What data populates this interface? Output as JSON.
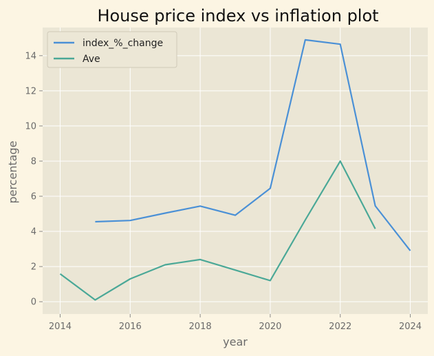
{
  "chart_data": {
    "type": "line",
    "title": "House price index vs inflation plot",
    "xlabel": "year",
    "ylabel": "percentage",
    "xlim": [
      2013.5,
      2024.5
    ],
    "ylim": [
      -0.7,
      15.6
    ],
    "xticks": [
      2014,
      2016,
      2018,
      2020,
      2022,
      2024
    ],
    "yticks": [
      0,
      2,
      4,
      6,
      8,
      10,
      12,
      14
    ],
    "grid": true,
    "legend_position": "top-left",
    "series": [
      {
        "name": "index_%_change",
        "color": "#4a90d6",
        "x": [
          2015,
          2016,
          2017,
          2018,
          2019,
          2020,
          2021,
          2022,
          2023,
          2024
        ],
        "y": [
          4.55,
          4.62,
          5.04,
          5.44,
          4.92,
          6.45,
          14.9,
          14.65,
          5.45,
          2.9
        ]
      },
      {
        "name": "Ave",
        "color": "#4aa897",
        "x": [
          2014,
          2015,
          2016,
          2017,
          2018,
          2019,
          2020,
          2021,
          2022,
          2023
        ],
        "y": [
          1.58,
          0.1,
          1.3,
          2.1,
          2.4,
          1.8,
          1.2,
          4.65,
          8.0,
          4.15
        ]
      }
    ]
  }
}
